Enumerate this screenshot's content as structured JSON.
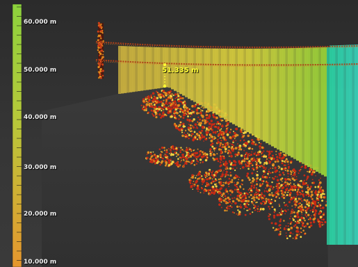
{
  "color_scale": {
    "labels": [
      "60.000 m",
      "50.000 m",
      "40.000 m",
      "30.000 m",
      "20.000 m",
      "10.000 m"
    ],
    "top_color": "#8cd23c",
    "bottom_color": "#e6962e"
  },
  "measurement": {
    "value_label": "51.335 m",
    "color": "#ffff33"
  },
  "palette": {
    "background": "#333333",
    "wall_yellow": "#d9c640",
    "wall_green": "#b8d83a",
    "wall_teal": "#2fd6b0",
    "points_red": "#c82a14",
    "points_orange": "#e08a1e",
    "points_yellow": "#f0d040"
  },
  "icons": {
    "tower": "tower-icon",
    "measure_marker": "measure-marker-icon"
  }
}
